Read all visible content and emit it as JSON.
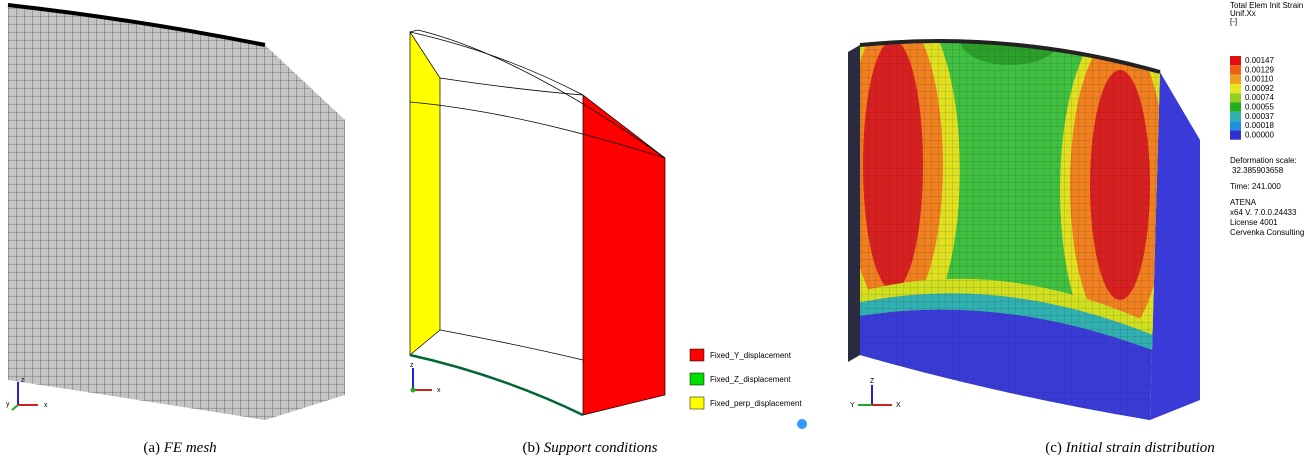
{
  "panels": [
    {
      "caption": {
        "label": "(a)",
        "text": "FE mesh"
      },
      "axes": [
        "z",
        "x",
        "y"
      ]
    },
    {
      "caption": {
        "label": "(b)",
        "text": "Support conditions"
      },
      "axes": [
        "z",
        "x"
      ],
      "legend": [
        "Fixed_Y_displacement",
        "Fixed_Z_displacement",
        "Fixed_perp_displacement"
      ]
    },
    {
      "caption": {
        "label": "(c)",
        "text": "Initial strain distribution"
      },
      "axes": [
        "Z",
        "Y",
        "X"
      ],
      "legend": {
        "title": [
          "Total Elem Init Strain",
          "Unif.Xx",
          "[-]"
        ],
        "values": [
          "0.00147",
          "0.00129",
          "0.00110",
          "0.00092",
          "0.00074",
          "0.00055",
          "0.00037",
          "0.00018",
          "0.00000"
        ]
      },
      "info": [
        "Deformation scale:",
        "32.385903658",
        "Time:  241.000",
        "ATENA",
        "x64 V. 7.0.0.24433",
        "License 4001",
        "Cervenka Consulting"
      ]
    }
  ]
}
